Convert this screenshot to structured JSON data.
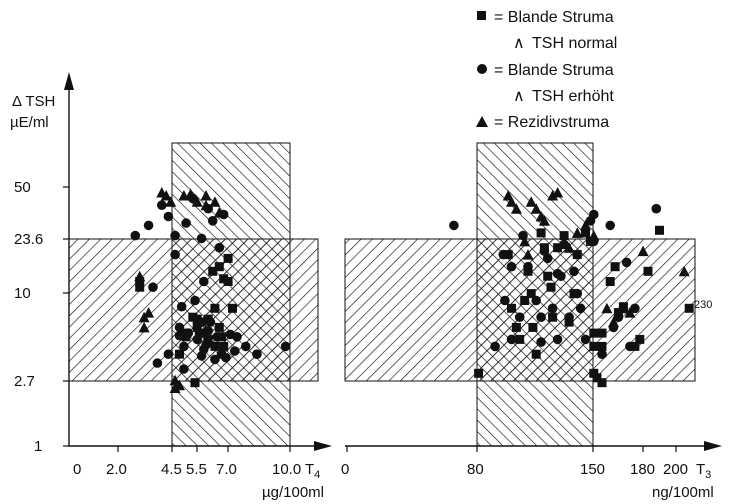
{
  "chart_data": [
    {
      "type": "scatter",
      "name": "T4 panel",
      "y_axis": {
        "label_line1": "Δ TSH",
        "label_line2": "µE/ml",
        "scale": "log",
        "ticks": [
          "50",
          "23.6",
          "10",
          "2.7",
          "1"
        ],
        "tick_values": [
          50,
          23.6,
          10,
          2.7,
          1
        ],
        "range": [
          1,
          100
        ]
      },
      "x_axis": {
        "ticks": [
          "0",
          "2.0",
          "4.5",
          "5.5",
          "7.0",
          "10.0"
        ],
        "tick_values": [
          0,
          2.0,
          4.5,
          5.5,
          7.0,
          10.0
        ],
        "variable": "T",
        "variable_sub": "4",
        "unit": "µg/100ml",
        "range": [
          0,
          11.0
        ]
      },
      "normal_x_range": [
        4.5,
        10.0
      ],
      "normal_y_range": [
        2.7,
        23.6
      ],
      "series": [
        {
          "name": "Blande Struma / TSH normal",
          "marker": "square",
          "points": [
            [
              3.2,
              12
            ],
            [
              3.2,
              11
            ],
            [
              5.8,
              6
            ],
            [
              6.0,
              6.5
            ],
            [
              6.2,
              5.5
            ],
            [
              5.6,
              7
            ],
            [
              6.6,
              8
            ],
            [
              6.8,
              6
            ],
            [
              7.0,
              4.5
            ],
            [
              5.0,
              4
            ],
            [
              7.2,
              12
            ],
            [
              6.8,
              15
            ],
            [
              7.2,
              17
            ],
            [
              5.8,
              6.8
            ],
            [
              6.3,
              5
            ],
            [
              6.6,
              4.5
            ],
            [
              5.7,
              2.6
            ],
            [
              6.9,
              5.2
            ],
            [
              5.3,
              5.2
            ],
            [
              6.3,
              6.8
            ],
            [
              7.0,
              12.5
            ],
            [
              7.4,
              8
            ],
            [
              5.3,
              5.5
            ],
            [
              6.5,
              14
            ]
          ]
        },
        {
          "name": "Blande Struma / TSH erhöht",
          "marker": "circle",
          "points": [
            [
              3.0,
              24
            ],
            [
              3.6,
              28
            ],
            [
              3.8,
              11
            ],
            [
              4.2,
              38
            ],
            [
              4.5,
              32
            ],
            [
              4.8,
              18
            ],
            [
              5.3,
              29
            ],
            [
              5.6,
              42
            ],
            [
              6.0,
              23
            ],
            [
              6.1,
              12
            ],
            [
              6.3,
              36
            ],
            [
              6.5,
              30
            ],
            [
              6.8,
              20
            ],
            [
              7.0,
              33
            ],
            [
              5.0,
              6
            ],
            [
              5.2,
              4.5
            ],
            [
              5.4,
              5.5
            ],
            [
              5.8,
              5
            ],
            [
              6.1,
              4.3
            ],
            [
              6.4,
              6.5
            ],
            [
              6.7,
              5.2
            ],
            [
              7.1,
              3.8
            ],
            [
              7.5,
              4.2
            ],
            [
              8.0,
              4.5
            ],
            [
              8.5,
              4
            ],
            [
              4.0,
              3.5
            ],
            [
              4.5,
              4
            ],
            [
              5.9,
              5.5
            ],
            [
              7.6,
              5.2
            ],
            [
              4.8,
              24
            ],
            [
              5.0,
              5.3
            ],
            [
              5.2,
              3.2
            ],
            [
              6.0,
              3.9
            ],
            [
              6.3,
              5.7
            ],
            [
              6.9,
              4.0
            ],
            [
              7.3,
              5.4
            ],
            [
              5.7,
              9
            ],
            [
              6.6,
              3.7
            ],
            [
              5.1,
              8.2
            ],
            [
              6.2,
              4.6
            ],
            [
              9.8,
              4.5
            ]
          ]
        },
        {
          "name": "Rezidivstruma",
          "marker": "triangle",
          "points": [
            [
              3.2,
              13
            ],
            [
              3.4,
              7
            ],
            [
              3.6,
              7.5
            ],
            [
              3.4,
              6
            ],
            [
              4.2,
              46
            ],
            [
              4.4,
              44
            ],
            [
              4.6,
              40
            ],
            [
              5.2,
              44
            ],
            [
              5.5,
              45
            ],
            [
              5.8,
              40
            ],
            [
              6.2,
              44
            ],
            [
              6.6,
              40
            ],
            [
              6.8,
              34
            ],
            [
              4.8,
              2.4
            ],
            [
              5.0,
              2.5
            ],
            [
              4.8,
              2.7
            ],
            [
              6.2,
              38
            ]
          ]
        }
      ]
    },
    {
      "type": "scatter",
      "name": "T3 panel",
      "x_axis": {
        "ticks": [
          "0",
          "80",
          "150",
          "180",
          "200"
        ],
        "tick_values": [
          0,
          80,
          150,
          180,
          200
        ],
        "variable": "T",
        "variable_sub": "3",
        "unit": "ng/100ml",
        "range": [
          0,
          210
        ]
      },
      "normal_x_range": [
        80,
        150
      ],
      "normal_y_range": [
        2.7,
        23.6
      ],
      "series": [
        {
          "name": "Blande Struma / TSH normal",
          "marker": "square",
          "points": [
            [
              80,
              3
            ],
            [
              98,
              18
            ],
            [
              100,
              8
            ],
            [
              103,
              6
            ],
            [
              105,
              5
            ],
            [
              108,
              9
            ],
            [
              110,
              14
            ],
            [
              112,
              10
            ],
            [
              113,
              6
            ],
            [
              115,
              4
            ],
            [
              118,
              25
            ],
            [
              120,
              20
            ],
            [
              122,
              13
            ],
            [
              124,
              11
            ],
            [
              125,
              7
            ],
            [
              128,
              20
            ],
            [
              132,
              24
            ],
            [
              135,
              6.5
            ],
            [
              138,
              10
            ],
            [
              140,
              18
            ],
            [
              145,
              25
            ],
            [
              148,
              22
            ],
            [
              150,
              3
            ],
            [
              152,
              2.8
            ],
            [
              155,
              2.6
            ],
            [
              150,
              4.5
            ],
            [
              155,
              4.5
            ],
            [
              150,
              5.5
            ],
            [
              155,
              5.5
            ],
            [
              160,
              12
            ],
            [
              163,
              15
            ],
            [
              165,
              7.5
            ],
            [
              168,
              8.2
            ],
            [
              175,
              4.5
            ],
            [
              178,
              5
            ],
            [
              183,
              14
            ],
            [
              190,
              26
            ],
            [
              208,
              8
            ]
          ]
        },
        {
          "name": "Blande Struma / TSH erhöht",
          "marker": "circle",
          "points": [
            [
              65,
              28
            ],
            [
              90,
              4.5
            ],
            [
              95,
              18
            ],
            [
              100,
              15
            ],
            [
              105,
              7
            ],
            [
              110,
              15
            ],
            [
              115,
              9
            ],
            [
              118,
              7
            ],
            [
              120,
              19
            ],
            [
              125,
              8
            ],
            [
              128,
              5
            ],
            [
              130,
              13
            ],
            [
              132,
              21
            ],
            [
              135,
              7
            ],
            [
              138,
              14
            ],
            [
              140,
              10
            ],
            [
              142,
              8
            ],
            [
              145,
              5
            ],
            [
              148,
              30
            ],
            [
              150,
              33
            ],
            [
              155,
              4
            ],
            [
              160,
              28
            ],
            [
              162,
              6
            ],
            [
              165,
              7
            ],
            [
              168,
              8
            ],
            [
              170,
              16
            ],
            [
              172,
              4.5
            ],
            [
              175,
              8
            ],
            [
              188,
              36
            ],
            [
              150,
              22
            ],
            [
              122,
              17
            ],
            [
              118,
              4.8
            ],
            [
              96,
              9
            ],
            [
              100,
              5
            ],
            [
              107,
              24
            ],
            [
              128,
              13.5
            ]
          ]
        },
        {
          "name": "Rezidivstruma",
          "marker": "triangle",
          "points": [
            [
              98,
              44
            ],
            [
              100,
              40
            ],
            [
              103,
              36
            ],
            [
              108,
              22
            ],
            [
              110,
              18
            ],
            [
              112,
              40
            ],
            [
              115,
              36
            ],
            [
              118,
              32
            ],
            [
              120,
              30
            ],
            [
              125,
              44
            ],
            [
              128,
              46
            ],
            [
              135,
              20
            ],
            [
              140,
              25
            ],
            [
              145,
              28
            ],
            [
              150,
              24
            ],
            [
              158,
              8
            ],
            [
              162,
              6.5
            ],
            [
              168,
              8
            ],
            [
              172,
              7.5
            ],
            [
              180,
              19
            ],
            [
              205,
              14
            ]
          ]
        }
      ],
      "annotations": [
        {
          "text": "230",
          "x": 208,
          "y": 9.5
        }
      ]
    }
  ],
  "legend": [
    {
      "marker": "square",
      "line1": "= Blande Struma",
      "line2": "TSH normal"
    },
    {
      "marker": "circle",
      "line1": "= Blande Struma",
      "line2": "TSH erhöht"
    },
    {
      "marker": "triangle",
      "line1": "= Rezidivstruma",
      "line2": ""
    }
  ],
  "colors": {
    "ink": "#111111",
    "background": "#ffffff"
  }
}
